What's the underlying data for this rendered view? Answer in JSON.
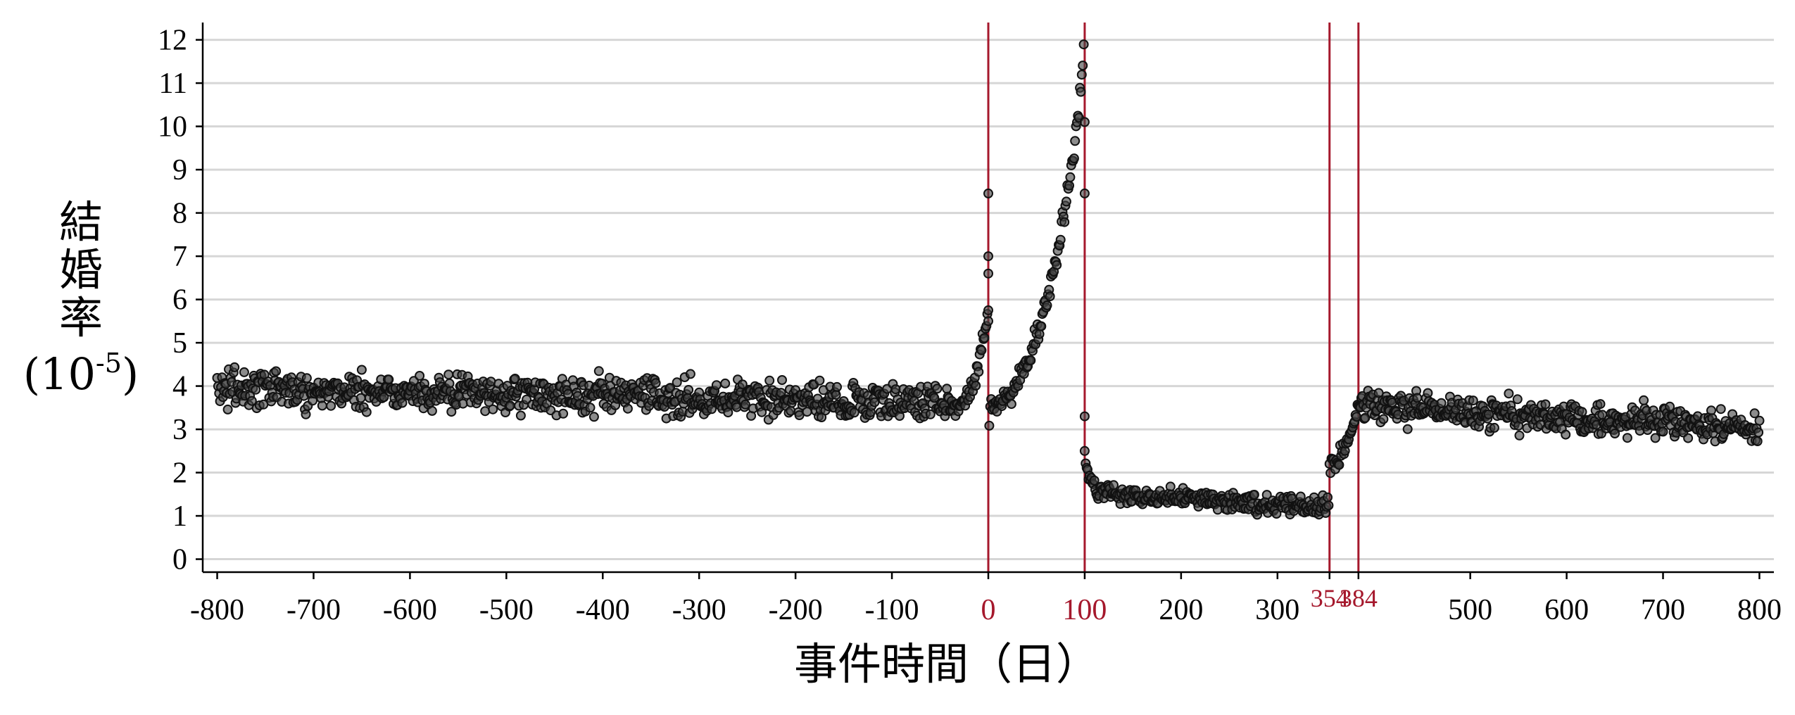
{
  "chart_data": {
    "type": "scatter",
    "title": "",
    "xlabel": "事件時間（日）",
    "ylabel_lines": [
      "結",
      "婚",
      "率"
    ],
    "ylabel_unit": "(10",
    "ylabel_unit_exp": "-5",
    "ylabel_unit_close": ")",
    "xlim": [
      -815,
      815
    ],
    "ylim": [
      -0.3,
      12.4
    ],
    "xticks": [
      "-800",
      "-700",
      "-600",
      "-500",
      "-400",
      "-300",
      "-200",
      "-100",
      "0",
      "100",
      "200",
      "300",
      "354",
      "384",
      "500",
      "600",
      "700",
      "800"
    ],
    "xticks_red": [
      "0",
      "100",
      "354",
      "384"
    ],
    "yticks": [
      "0",
      "1",
      "2",
      "3",
      "4",
      "5",
      "6",
      "7",
      "8",
      "9",
      "10",
      "11",
      "12"
    ],
    "grid": "horizontal",
    "reference_lines_x": [
      0,
      100,
      354,
      384
    ],
    "reference_line_color": "#a5182c",
    "marker_color": "#464646",
    "series_model": [
      {
        "range": [
          -800,
          -31
        ],
        "mean_start": 3.95,
        "mean_end": 3.6,
        "spread": 0.65
      },
      {
        "range": [
          -30,
          -1
        ],
        "curve": "rise",
        "from": 3.6,
        "to": 5.6,
        "spread": 0.35
      },
      {
        "x": 0,
        "values": [
          8.45,
          7.0,
          6.6,
          5.75,
          5.5
        ]
      },
      {
        "range": [
          1,
          99
        ],
        "curve": "exp",
        "from": 3.4,
        "to": 11.6,
        "spread": 0.45
      },
      {
        "x": 100,
        "values": [
          10.1,
          8.45,
          3.3,
          2.5
        ]
      },
      {
        "range": [
          101,
          110
        ],
        "curve": "drop",
        "from": 2.3,
        "to": 1.7,
        "spread": 0.2
      },
      {
        "range": [
          111,
          353
        ],
        "mean_start": 1.55,
        "mean_end": 1.2,
        "spread": 0.32
      },
      {
        "range": [
          354,
          383
        ],
        "curve": "rise",
        "from": 2.2,
        "to": 3.4,
        "spread": 0.3
      },
      {
        "range": [
          384,
          800
        ],
        "mean_start": 3.55,
        "mean_end": 3.0,
        "spread": 0.55
      }
    ]
  }
}
